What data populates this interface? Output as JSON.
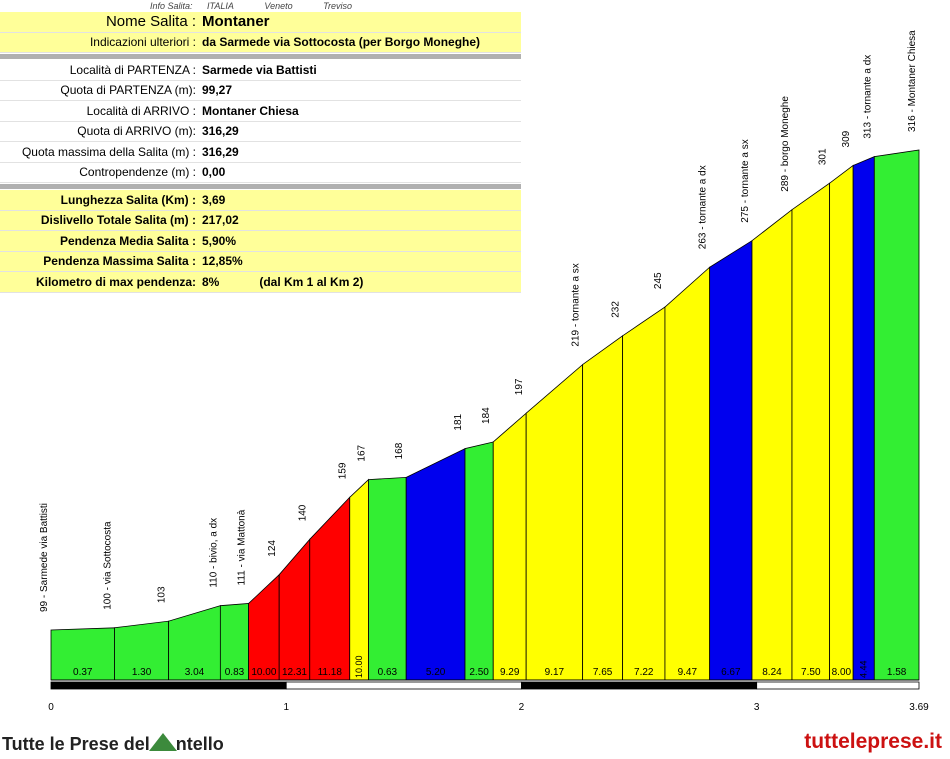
{
  "meta": {
    "info_label": "Info Salita:",
    "country": "ITALIA",
    "region": "Veneto",
    "province": "Treviso"
  },
  "info": {
    "name_label": "Nome Salita :",
    "name_value": "Montaner",
    "extra_label": "Indicazioni ulteriori :",
    "extra_value": "da Sarmede via Sottocosta (per Borgo Moneghe)",
    "start_loc_label": "Località di PARTENZA :",
    "start_loc_value": "Sarmede via Battisti",
    "start_alt_label": "Quota di PARTENZA (m):",
    "start_alt_value": "99,27",
    "end_loc_label": "Località di ARRIVO :",
    "end_loc_value": "Montaner Chiesa",
    "end_alt_label": "Quota di ARRIVO (m):",
    "end_alt_value": "316,29",
    "max_alt_label": "Quota massima della Salita (m) :",
    "max_alt_value": "316,29",
    "counter_label": "Contropendenze (m) :",
    "counter_value": "0,00",
    "length_label": "Lunghezza Salita (Km) :",
    "length_value": "3,69",
    "gain_label": "Dislivello Totale Salita (m) :",
    "gain_value": "217,02",
    "avg_label": "Pendenza Media Salita :",
    "avg_value": "5,90%",
    "maxgrad_label": "Pendenza Massima Salita :",
    "maxgrad_value": "12,85%",
    "maxkm_label": "Kilometro di max pendenza:",
    "maxkm_value": "8%",
    "maxkm_note": "(dal Km 1 al Km 2)"
  },
  "brand": {
    "left_prefix": "Tutte le Prese del",
    "left_suffix": "ntello",
    "right": "tutteleprese.it"
  },
  "chart_data": {
    "type": "area",
    "title": "",
    "xlabel": "",
    "ylabel": "",
    "x_ticks": [
      "0",
      "1",
      "2",
      "3",
      "3.69"
    ],
    "xlim": [
      0,
      3.69
    ],
    "ylim": [
      0,
      330
    ],
    "colors": {
      "green": "#33ee33",
      "yellow": "#ffff00",
      "red": "#ff0000",
      "blue": "#0000ee"
    },
    "segments": [
      {
        "x0": 0.0,
        "x1": 0.27,
        "y0": 99,
        "y1": 100,
        "color": "green",
        "grade": "0.37"
      },
      {
        "x0": 0.27,
        "x1": 0.5,
        "y0": 100,
        "y1": 103,
        "color": "green",
        "grade": "1.30"
      },
      {
        "x0": 0.5,
        "x1": 0.72,
        "y0": 103,
        "y1": 110,
        "color": "green",
        "grade": "3.04"
      },
      {
        "x0": 0.72,
        "x1": 0.84,
        "y0": 110,
        "y1": 111,
        "color": "green",
        "grade": "0.83"
      },
      {
        "x0": 0.84,
        "x1": 0.97,
        "y0": 111,
        "y1": 124,
        "color": "red",
        "grade": "10.00"
      },
      {
        "x0": 0.97,
        "x1": 1.1,
        "y0": 124,
        "y1": 140,
        "color": "red",
        "grade": "12.31"
      },
      {
        "x0": 1.1,
        "x1": 1.27,
        "y0": 140,
        "y1": 159,
        "color": "red",
        "grade": "11.18"
      },
      {
        "x0": 1.27,
        "x1": 1.35,
        "y0": 159,
        "y1": 167,
        "color": "yellow",
        "grade": "10.00"
      },
      {
        "x0": 1.35,
        "x1": 1.51,
        "y0": 167,
        "y1": 168,
        "color": "green",
        "grade": "0.63"
      },
      {
        "x0": 1.51,
        "x1": 1.76,
        "y0": 168,
        "y1": 181,
        "color": "blue",
        "grade": "5.20"
      },
      {
        "x0": 1.76,
        "x1": 1.88,
        "y0": 181,
        "y1": 184,
        "color": "green",
        "grade": "2.50"
      },
      {
        "x0": 1.88,
        "x1": 2.02,
        "y0": 184,
        "y1": 197,
        "color": "yellow",
        "grade": "9.29"
      },
      {
        "x0": 2.02,
        "x1": 2.26,
        "y0": 197,
        "y1": 219,
        "color": "yellow",
        "grade": "9.17"
      },
      {
        "x0": 2.26,
        "x1": 2.43,
        "y0": 219,
        "y1": 232,
        "color": "yellow",
        "grade": "7.65"
      },
      {
        "x0": 2.43,
        "x1": 2.61,
        "y0": 232,
        "y1": 245,
        "color": "yellow",
        "grade": "7.22"
      },
      {
        "x0": 2.61,
        "x1": 2.8,
        "y0": 245,
        "y1": 263,
        "color": "yellow",
        "grade": "9.47"
      },
      {
        "x0": 2.8,
        "x1": 2.98,
        "y0": 263,
        "y1": 275,
        "color": "blue",
        "grade": "6.67"
      },
      {
        "x0": 2.98,
        "x1": 3.15,
        "y0": 275,
        "y1": 289,
        "color": "yellow",
        "grade": "8.24"
      },
      {
        "x0": 3.15,
        "x1": 3.31,
        "y0": 289,
        "y1": 301,
        "color": "yellow",
        "grade": "7.50"
      },
      {
        "x0": 3.31,
        "x1": 3.41,
        "y0": 301,
        "y1": 309,
        "color": "yellow",
        "grade": "8.00"
      },
      {
        "x0": 3.41,
        "x1": 3.5,
        "y0": 309,
        "y1": 313,
        "color": "blue",
        "grade": "4.44"
      },
      {
        "x0": 3.5,
        "x1": 3.69,
        "y0": 313,
        "y1": 316,
        "color": "green",
        "grade": "1.58"
      }
    ],
    "point_labels": [
      {
        "x": 0.0,
        "label": "99 - Sarmede via Battisti"
      },
      {
        "x": 0.27,
        "label": "100 - via Sottocosta"
      },
      {
        "x": 0.5,
        "label": "103"
      },
      {
        "x": 0.72,
        "label": "110 - bivio, a dx"
      },
      {
        "x": 0.84,
        "label": "111 - via Mattonà"
      },
      {
        "x": 0.97,
        "label": "124"
      },
      {
        "x": 1.1,
        "label": "140"
      },
      {
        "x": 1.27,
        "label": "159"
      },
      {
        "x": 1.35,
        "label": "167"
      },
      {
        "x": 1.51,
        "label": "168"
      },
      {
        "x": 1.76,
        "label": "181"
      },
      {
        "x": 1.88,
        "label": "184"
      },
      {
        "x": 2.02,
        "label": "197"
      },
      {
        "x": 2.26,
        "label": "219 - tornante a sx"
      },
      {
        "x": 2.43,
        "label": "232"
      },
      {
        "x": 2.61,
        "label": "245"
      },
      {
        "x": 2.8,
        "label": "263 - tornante a dx"
      },
      {
        "x": 2.98,
        "label": "275 - tornante a sx"
      },
      {
        "x": 3.15,
        "label": "289 - borgo Moneghe"
      },
      {
        "x": 3.31,
        "label": "301"
      },
      {
        "x": 3.41,
        "label": "309"
      },
      {
        "x": 3.5,
        "label": "313 - tornante a dx"
      },
      {
        "x": 3.69,
        "label": "316 - Montaner Chiesa"
      }
    ]
  }
}
